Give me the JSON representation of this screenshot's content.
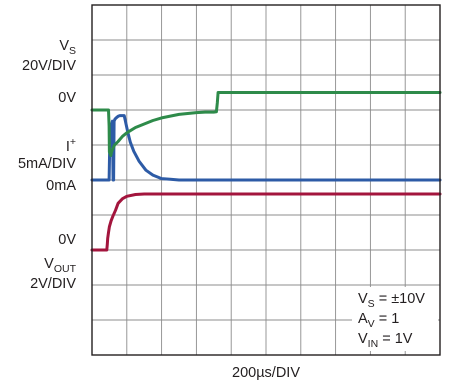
{
  "chart_data": {
    "type": "line",
    "xlabel": "200µs/DIV",
    "x_unit": "µs",
    "xlim": [
      0,
      2000
    ],
    "x_divisions": 10,
    "y_divisions": 10,
    "grid": true,
    "traces": [
      {
        "name": "V_S",
        "channel_label": {
          "main": "V",
          "sub": "S"
        },
        "scale": "20V/DIV",
        "ground_label": "0V",
        "ground_div": 7,
        "color": "#a3153d",
        "unit": "V",
        "x": [
          0,
          85,
          88,
          90,
          95,
          100,
          110,
          120,
          135,
          150,
          175,
          200,
          250,
          300,
          400,
          500,
          2000
        ],
        "y": [
          0,
          0,
          3.3,
          6.7,
          10,
          13.3,
          16.7,
          19.3,
          22.7,
          26.7,
          29.3,
          30.7,
          31.7,
          32,
          32,
          32,
          32
        ]
      },
      {
        "name": "I+",
        "channel_label": {
          "main": "I",
          "sup": "+"
        },
        "scale": "5mA/DIV",
        "ground_label": "0mA",
        "ground_div": 5,
        "color": "#2d5ba6",
        "unit": "mA",
        "x": [
          0,
          95,
          98,
          102,
          112,
          117,
          121,
          124,
          127,
          132,
          140,
          150,
          160,
          175,
          185,
          205,
          220,
          240,
          270,
          310,
          350,
          400,
          450,
          500,
          550,
          2000
        ],
        "y": [
          0,
          0,
          0,
          4.7,
          7.7,
          8.4,
          0,
          0,
          8.4,
          8.7,
          8.9,
          9.1,
          9.2,
          9.2,
          9.2,
          6.9,
          5.4,
          4.1,
          2.7,
          1.4,
          0.7,
          0.2,
          0.1,
          0,
          0,
          0
        ]
      },
      {
        "name": "V_OUT",
        "channel_label": {
          "main": "V",
          "sub": "OUT"
        },
        "scale": "2V/DIV",
        "ground_label": "0V",
        "ground_div": 3,
        "color": "#2e8b4a",
        "unit": "V",
        "x": [
          0,
          95,
          98,
          100,
          105,
          108,
          112,
          120,
          130,
          150,
          175,
          200,
          250,
          300,
          350,
          400,
          450,
          500,
          550,
          600,
          650,
          700,
          715,
          720,
          725,
          2000
        ],
        "y": [
          0,
          0,
          -0.9,
          -2.4,
          -2.5,
          -2.6,
          -2.4,
          -2.2,
          -2.0,
          -1.8,
          -1.5,
          -1.3,
          -1.0,
          -0.8,
          -0.6,
          -0.45,
          -0.35,
          -0.25,
          -0.2,
          -0.15,
          -0.12,
          -0.12,
          -0.1,
          0.4,
          1.0,
          1.0
        ]
      }
    ],
    "conditions": [
      {
        "main": "V",
        "sub": "S",
        "rest": " = ±10V"
      },
      {
        "main": "A",
        "sub": "V",
        "rest": " = 1"
      },
      {
        "main": "V",
        "sub": "IN",
        "rest": " = 1V"
      }
    ]
  }
}
